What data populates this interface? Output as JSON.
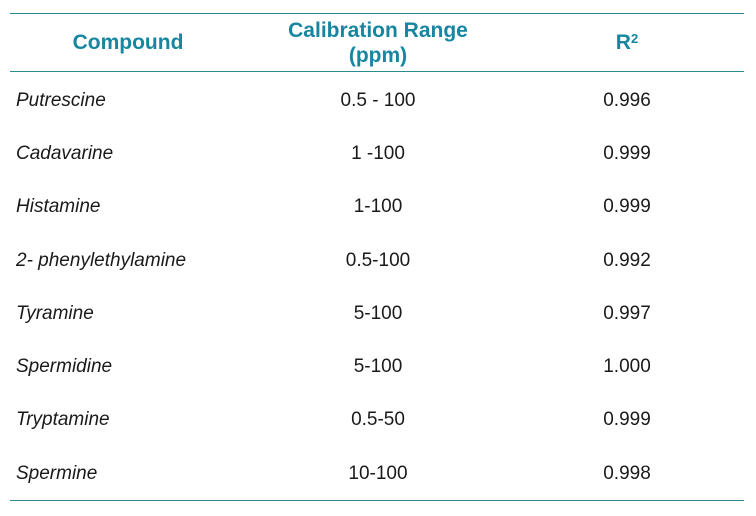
{
  "table": {
    "headers": {
      "compound": "Compound",
      "calibration_line1": "Calibration Range",
      "calibration_line2": "(ppm)",
      "r2_base": "R",
      "r2_sup": "2"
    },
    "rows": [
      {
        "compound": "Putrescine",
        "range": "0.5 - 100",
        "r2": "0.996"
      },
      {
        "compound": "Cadavarine",
        "range": "1 -100",
        "r2": "0.999"
      },
      {
        "compound": "Histamine",
        "range": "1-100",
        "r2": "0.999"
      },
      {
        "compound": "2- phenylethylamine",
        "range": "0.5-100",
        "r2": "0.992"
      },
      {
        "compound": "Tyramine",
        "range": "5-100",
        "r2": "0.997"
      },
      {
        "compound": "Spermidine",
        "range": "5-100",
        "r2": "1.000"
      },
      {
        "compound": "Tryptamine",
        "range": "0.5-50",
        "r2": "0.999"
      },
      {
        "compound": "Spermine",
        "range": "10-100",
        "r2": "0.998"
      }
    ],
    "colors": {
      "header_text": "#1786a0",
      "rule": "#2a8c92",
      "body_text": "#1a1a1a"
    }
  }
}
